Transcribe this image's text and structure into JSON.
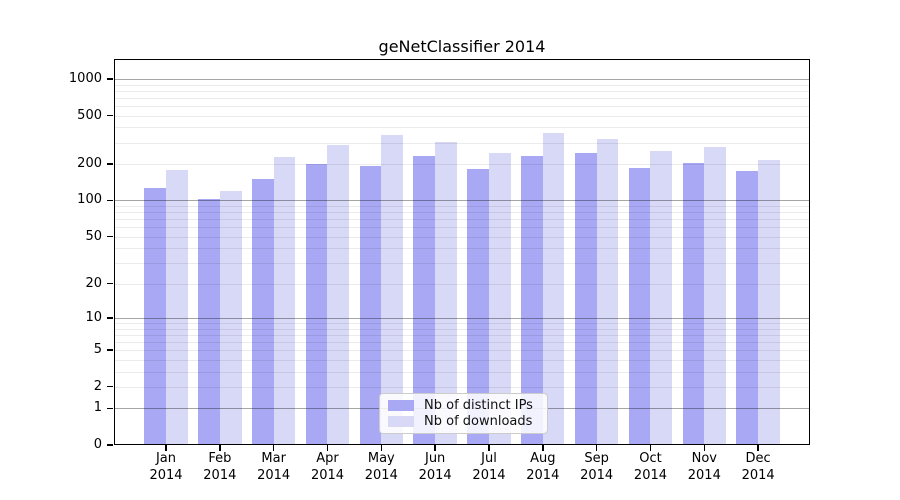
{
  "figure": {
    "title": "geNetClassifier 2014"
  },
  "chart_data": {
    "type": "bar",
    "title": "geNetClassifier 2014",
    "categories": [
      "Jan",
      "Feb",
      "Mar",
      "Apr",
      "May",
      "Jun",
      "Jul",
      "Aug",
      "Sep",
      "Oct",
      "Nov",
      "Dec"
    ],
    "year_label": "2014",
    "series": [
      {
        "name": "Nb of distinct IPs",
        "color": "#a8a8f5",
        "values": [
          127,
          103,
          150,
          200,
          191,
          233,
          181,
          232,
          246,
          185,
          205,
          175
        ]
      },
      {
        "name": "Nb of downloads",
        "color": "#d8d8f7",
        "values": [
          178,
          120,
          230,
          285,
          348,
          303,
          245,
          358,
          322,
          256,
          276,
          217
        ]
      }
    ],
    "yscale": "log1p",
    "ylim": [
      0,
      1380
    ],
    "yticks": [
      0,
      1,
      2,
      5,
      10,
      20,
      50,
      100,
      200,
      500,
      1000
    ],
    "grid": {
      "major": [
        1,
        10,
        100,
        1000
      ],
      "minor": [
        2,
        3,
        4,
        5,
        6,
        7,
        8,
        9,
        20,
        30,
        40,
        50,
        60,
        70,
        80,
        90,
        200,
        300,
        400,
        500,
        600,
        700,
        800,
        900
      ],
      "on": true
    },
    "legend_position": "inside-bottom-center",
    "frame": "box",
    "bar_colors": {
      "distinct_ips": "#a8a8f5",
      "downloads": "#d8d8f7"
    }
  }
}
